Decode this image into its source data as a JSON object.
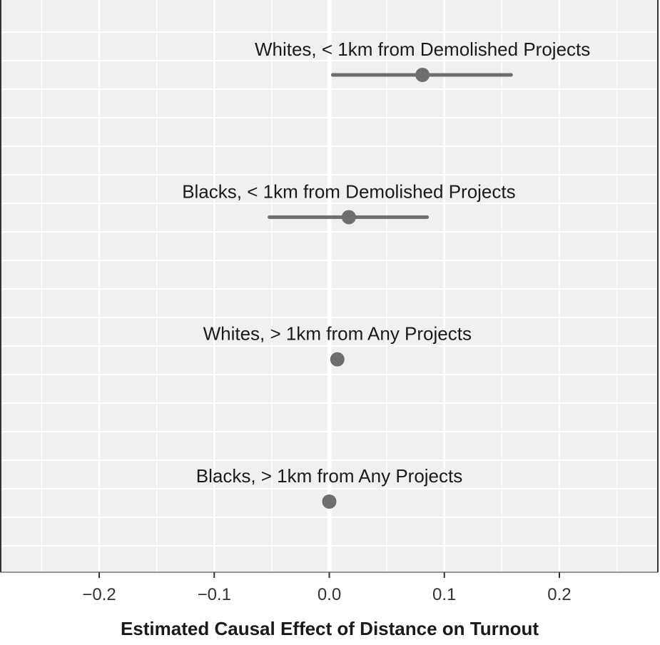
{
  "chart_data": {
    "type": "scatter",
    "title": "",
    "xlabel": "Estimated Causal Effect of Distance on Turnout",
    "ylabel": "",
    "xlim": [
      -0.285,
      0.285
    ],
    "x_ticks": [
      -0.2,
      -0.1,
      0.0,
      0.1,
      0.2
    ],
    "x_tick_labels": [
      "−0.2",
      "−0.1",
      "0.0",
      "0.1",
      "0.2"
    ],
    "reference_line_x": 0.0,
    "grid": true,
    "series": [
      {
        "points": [
          {
            "label": "Whites, < 1km from Demolished Projects",
            "estimate": 0.081,
            "ci_low": 0.003,
            "ci_high": 0.158
          },
          {
            "label": "Blacks, < 1km from Demolished Projects",
            "estimate": 0.017,
            "ci_low": -0.052,
            "ci_high": 0.085
          },
          {
            "label": "Whites, > 1km from Any Projects",
            "estimate": 0.007,
            "ci_low": null,
            "ci_high": null
          },
          {
            "label": "Blacks, > 1km from Any Projects",
            "estimate": 0.0,
            "ci_low": null,
            "ci_high": null
          }
        ]
      }
    ],
    "colors": {
      "panel": "#f0f0f0",
      "grid": "#ffffff",
      "point": "#6e6e6e",
      "axis": "#333333"
    }
  }
}
